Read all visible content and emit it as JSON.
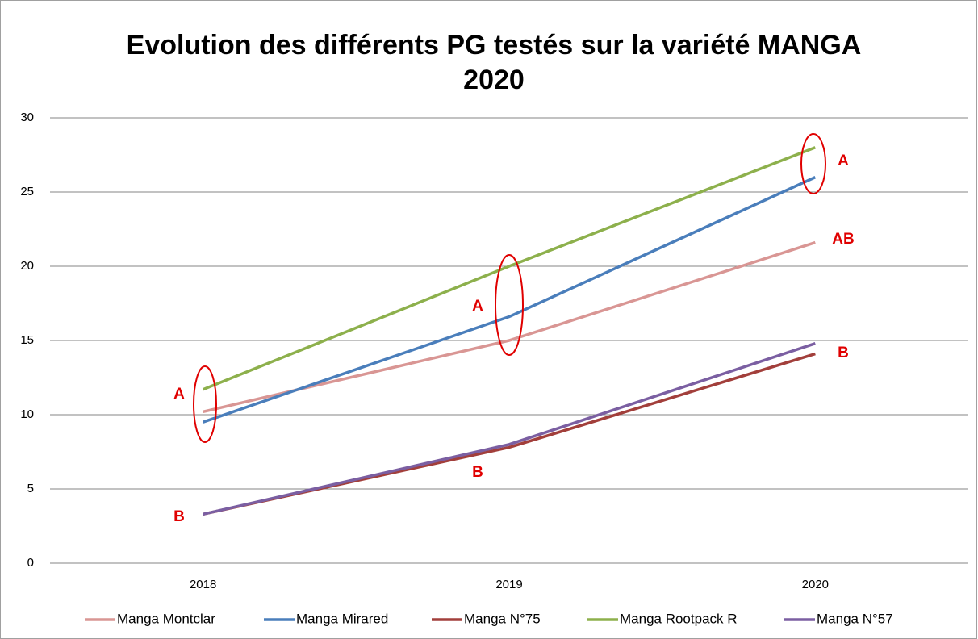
{
  "chart_data": {
    "type": "line",
    "title": [
      "Evolution des différents PG testés sur la variété MANGA",
      "2020"
    ],
    "categories": [
      "2018",
      "2019",
      "2020"
    ],
    "series": [
      {
        "name": "Manga Montclar",
        "color": "#d99694",
        "values": [
          10.2,
          15.0,
          21.6
        ]
      },
      {
        "name": "Manga Mirared",
        "color": "#4a7ebb",
        "values": [
          9.5,
          16.6,
          26.0
        ]
      },
      {
        "name": "Manga N°75",
        "color": "#a23f3b",
        "values": [
          3.3,
          7.8,
          14.1
        ]
      },
      {
        "name": "Manga Rootpack R",
        "color": "#8db04c",
        "values": [
          11.7,
          20.0,
          28.0
        ]
      },
      {
        "name": "Manga N°57",
        "color": "#7b5fa2",
        "values": [
          3.3,
          8.0,
          14.8
        ]
      }
    ],
    "annotations": [
      "A",
      "B",
      "A",
      "B",
      "A",
      "AB",
      "B"
    ],
    "ylim": [
      0,
      30
    ],
    "yticks": [
      0,
      5,
      10,
      15,
      20,
      25,
      30
    ],
    "grid": true,
    "legend": "bottom"
  }
}
